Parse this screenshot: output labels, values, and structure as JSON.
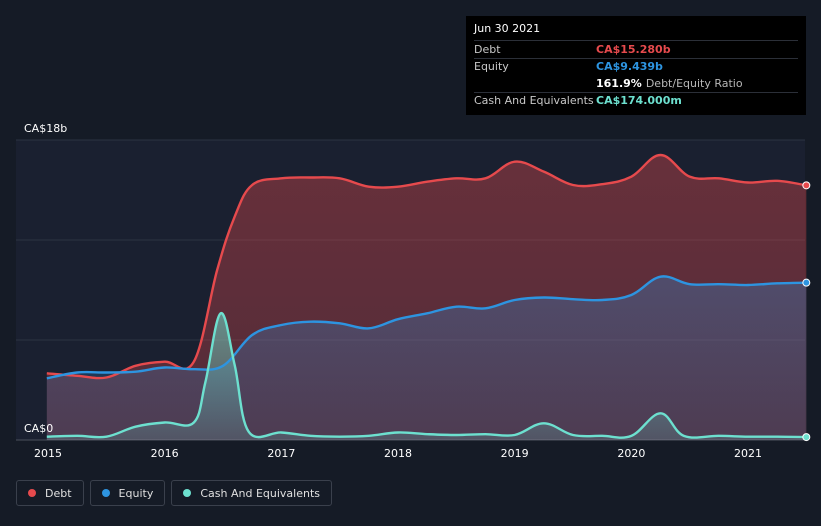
{
  "chart_data": {
    "type": "area",
    "x_ticks": [
      "2015",
      "2016",
      "2017",
      "2018",
      "2019",
      "2020",
      "2021"
    ],
    "y_tick_labels": [
      "CA$0",
      "CA$18b"
    ],
    "ylim": [
      0,
      18
    ],
    "grid": true,
    "legend_placement": "bottom-left",
    "series": [
      {
        "name": "Debt",
        "color": "#e64a4d",
        "points": [
          [
            2014.99,
            4.0
          ],
          [
            2015.25,
            3.85
          ],
          [
            2015.5,
            3.75
          ],
          [
            2015.75,
            4.45
          ],
          [
            2016.0,
            4.7
          ],
          [
            2016.25,
            4.7
          ],
          [
            2016.45,
            10.2
          ],
          [
            2016.6,
            13.4
          ],
          [
            2016.75,
            15.3
          ],
          [
            2017.0,
            15.7
          ],
          [
            2017.25,
            15.75
          ],
          [
            2017.5,
            15.7
          ],
          [
            2017.75,
            15.2
          ],
          [
            2018.0,
            15.2
          ],
          [
            2018.25,
            15.5
          ],
          [
            2018.5,
            15.7
          ],
          [
            2018.75,
            15.7
          ],
          [
            2019.0,
            16.7
          ],
          [
            2019.25,
            16.1
          ],
          [
            2019.5,
            15.3
          ],
          [
            2019.75,
            15.35
          ],
          [
            2020.0,
            15.8
          ],
          [
            2020.25,
            17.1
          ],
          [
            2020.5,
            15.8
          ],
          [
            2020.75,
            15.7
          ],
          [
            2021.0,
            15.45
          ],
          [
            2021.25,
            15.55
          ],
          [
            2021.5,
            15.28
          ]
        ]
      },
      {
        "name": "Equity",
        "color": "#2d94e0",
        "points": [
          [
            2014.99,
            3.7
          ],
          [
            2015.25,
            4.05
          ],
          [
            2015.5,
            4.05
          ],
          [
            2015.75,
            4.1
          ],
          [
            2016.0,
            4.35
          ],
          [
            2016.25,
            4.25
          ],
          [
            2016.5,
            4.45
          ],
          [
            2016.75,
            6.3
          ],
          [
            2017.0,
            6.9
          ],
          [
            2017.25,
            7.1
          ],
          [
            2017.5,
            7.0
          ],
          [
            2017.75,
            6.7
          ],
          [
            2018.0,
            7.25
          ],
          [
            2018.25,
            7.6
          ],
          [
            2018.5,
            8.0
          ],
          [
            2018.75,
            7.9
          ],
          [
            2019.0,
            8.4
          ],
          [
            2019.25,
            8.55
          ],
          [
            2019.5,
            8.45
          ],
          [
            2019.75,
            8.4
          ],
          [
            2020.0,
            8.7
          ],
          [
            2020.25,
            9.8
          ],
          [
            2020.5,
            9.35
          ],
          [
            2020.75,
            9.35
          ],
          [
            2021.0,
            9.3
          ],
          [
            2021.25,
            9.4
          ],
          [
            2021.5,
            9.439
          ]
        ]
      },
      {
        "name": "Cash And Equivalents",
        "color": "#6de0cf",
        "points": [
          [
            2014.99,
            0.2
          ],
          [
            2015.25,
            0.25
          ],
          [
            2015.5,
            0.2
          ],
          [
            2015.75,
            0.8
          ],
          [
            2016.0,
            1.05
          ],
          [
            2016.25,
            1.05
          ],
          [
            2016.35,
            3.5
          ],
          [
            2016.48,
            7.6
          ],
          [
            2016.6,
            4.5
          ],
          [
            2016.72,
            0.5
          ],
          [
            2017.0,
            0.45
          ],
          [
            2017.25,
            0.25
          ],
          [
            2017.5,
            0.2
          ],
          [
            2017.75,
            0.25
          ],
          [
            2018.0,
            0.45
          ],
          [
            2018.25,
            0.35
          ],
          [
            2018.5,
            0.3
          ],
          [
            2018.75,
            0.35
          ],
          [
            2019.0,
            0.3
          ],
          [
            2019.25,
            1.0
          ],
          [
            2019.5,
            0.3
          ],
          [
            2019.75,
            0.25
          ],
          [
            2020.0,
            0.25
          ],
          [
            2020.25,
            1.6
          ],
          [
            2020.45,
            0.25
          ],
          [
            2020.75,
            0.25
          ],
          [
            2021.0,
            0.2
          ],
          [
            2021.25,
            0.2
          ],
          [
            2021.5,
            0.174
          ]
        ]
      }
    ]
  },
  "tooltip": {
    "date": "Jun 30 2021",
    "rows": [
      {
        "label": "Debt",
        "value": "CA$15.280b",
        "color": "#e64a4d"
      },
      {
        "label": "Equity",
        "value": "CA$9.439b",
        "color": "#2d94e0"
      },
      {
        "label": "",
        "value": "161.9%",
        "unit": "Debt/Equity Ratio",
        "color": "#ffffff"
      },
      {
        "label": "Cash And Equivalents",
        "value": "CA$174.000m",
        "color": "#6de0cf"
      }
    ]
  },
  "legend": [
    {
      "label": "Debt",
      "color": "#e64a4d"
    },
    {
      "label": "Equity",
      "color": "#2d94e0"
    },
    {
      "label": "Cash And Equivalents",
      "color": "#6de0cf"
    }
  ]
}
